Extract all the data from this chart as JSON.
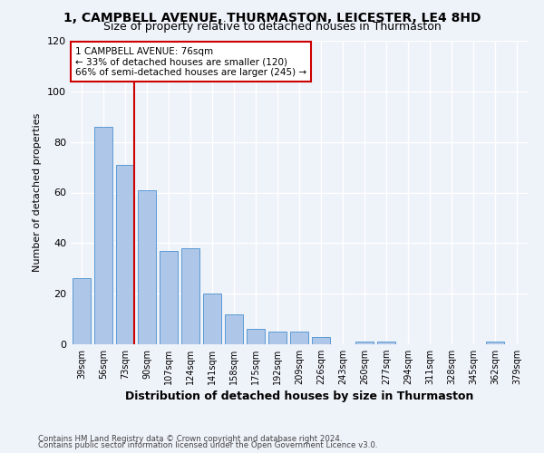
{
  "title1": "1, CAMPBELL AVENUE, THURMASTON, LEICESTER, LE4 8HD",
  "title2": "Size of property relative to detached houses in Thurmaston",
  "xlabel": "Distribution of detached houses by size in Thurmaston",
  "ylabel": "Number of detached properties",
  "categories": [
    "39sqm",
    "56sqm",
    "73sqm",
    "90sqm",
    "107sqm",
    "124sqm",
    "141sqm",
    "158sqm",
    "175sqm",
    "192sqm",
    "209sqm",
    "226sqm",
    "243sqm",
    "260sqm",
    "277sqm",
    "294sqm",
    "311sqm",
    "328sqm",
    "345sqm",
    "362sqm",
    "379sqm"
  ],
  "values": [
    26,
    86,
    71,
    61,
    37,
    38,
    20,
    12,
    6,
    5,
    5,
    3,
    0,
    1,
    1,
    0,
    0,
    0,
    0,
    1,
    0
  ],
  "bar_color": "#aec6e8",
  "bar_edge_color": "#5b9bd5",
  "vline_x_index": 2,
  "vline_color": "#cc0000",
  "annotation_text": "1 CAMPBELL AVENUE: 76sqm\n← 33% of detached houses are smaller (120)\n66% of semi-detached houses are larger (245) →",
  "annotation_box_color": "#ffffff",
  "annotation_box_edge": "#cc0000",
  "ylim": [
    0,
    120
  ],
  "yticks": [
    0,
    20,
    40,
    60,
    80,
    100,
    120
  ],
  "footnote1": "Contains HM Land Registry data © Crown copyright and database right 2024.",
  "footnote2": "Contains public sector information licensed under the Open Government Licence v3.0.",
  "bg_color": "#eef2f9",
  "grid_color": "#ffffff",
  "title1_fontsize": 10,
  "title2_fontsize": 9
}
